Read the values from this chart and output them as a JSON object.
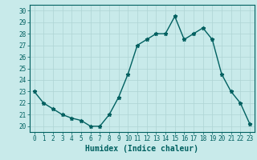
{
  "xlabel": "Humidex (Indice chaleur)",
  "x_values": [
    0,
    1,
    2,
    3,
    4,
    5,
    6,
    7,
    8,
    9,
    10,
    11,
    12,
    13,
    14,
    15,
    16,
    17,
    18,
    19,
    20,
    21,
    22,
    23
  ],
  "y_values": [
    23,
    22,
    21.5,
    21,
    20.7,
    20.5,
    20,
    20,
    21,
    22.5,
    24.5,
    27,
    27.5,
    28,
    28,
    29.5,
    27.5,
    28,
    28.5,
    27.5,
    24.5,
    23,
    22,
    20.2
  ],
  "ylim": [
    19.5,
    30.5
  ],
  "xlim": [
    -0.5,
    23.5
  ],
  "yticks": [
    20,
    21,
    22,
    23,
    24,
    25,
    26,
    27,
    28,
    29,
    30
  ],
  "xticks": [
    0,
    1,
    2,
    3,
    4,
    5,
    6,
    7,
    8,
    9,
    10,
    11,
    12,
    13,
    14,
    15,
    16,
    17,
    18,
    19,
    20,
    21,
    22,
    23
  ],
  "line_color": "#006060",
  "marker": "*",
  "bg_color": "#c8eaea",
  "grid_color": "#aed4d4",
  "axis_color": "#006060",
  "text_color": "#006060",
  "tick_label_fontsize": 5.5,
  "xlabel_fontsize": 7.0,
  "linewidth": 1.0,
  "markersize": 3.5
}
